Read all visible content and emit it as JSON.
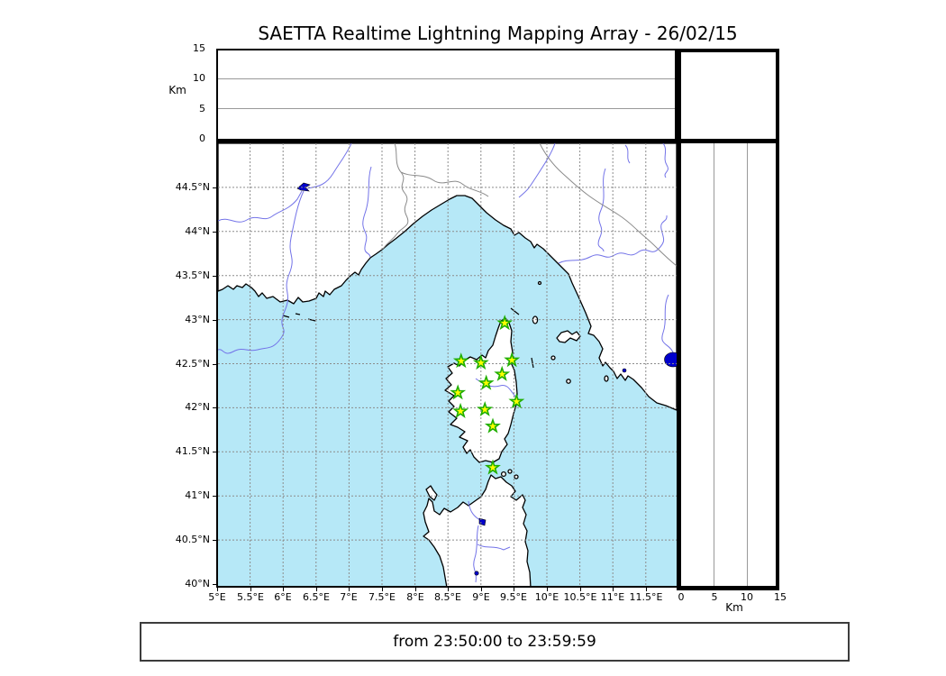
{
  "title": "SAETTA Realtime Lightning Mapping Array - 26/02/15",
  "time_banner": "from 23:50:00 to 23:59:59",
  "altitude_axes": {
    "left": {
      "unit_label": "Km",
      "ticks": [
        0,
        5,
        10,
        15
      ],
      "range_km": [
        0,
        15
      ],
      "gridlines_km": [
        5,
        10
      ]
    },
    "bottom_right": {
      "unit_label": "Km",
      "ticks": [
        0,
        5,
        10,
        15
      ],
      "range_km": [
        0,
        15
      ],
      "gridlines_km": [
        5,
        10
      ]
    }
  },
  "map_axes": {
    "lat_range_deg": [
      40,
      45
    ],
    "lon_range_deg": [
      5,
      12
    ],
    "lat_ticks": [
      {
        "label": "44.5°N",
        "deg": 44.5
      },
      {
        "label": "44°N",
        "deg": 44
      },
      {
        "label": "43.5°N",
        "deg": 43.5
      },
      {
        "label": "43°N",
        "deg": 43
      },
      {
        "label": "42.5°N",
        "deg": 42.5
      },
      {
        "label": "42°N",
        "deg": 42
      },
      {
        "label": "41.5°N",
        "deg": 41.5
      },
      {
        "label": "41°N",
        "deg": 41
      },
      {
        "label": "40.5°N",
        "deg": 40.5
      },
      {
        "label": "40°N",
        "deg": 40
      }
    ],
    "lon_ticks": [
      {
        "label": "5°E",
        "deg": 5
      },
      {
        "label": "5.5°E",
        "deg": 5.5
      },
      {
        "label": "6°E",
        "deg": 6
      },
      {
        "label": "6.5°E",
        "deg": 6.5
      },
      {
        "label": "7°E",
        "deg": 7
      },
      {
        "label": "7.5°E",
        "deg": 7.5
      },
      {
        "label": "8°E",
        "deg": 8
      },
      {
        "label": "8.5°E",
        "deg": 8.5
      },
      {
        "label": "9°E",
        "deg": 9
      },
      {
        "label": "9.5°E",
        "deg": 9.5
      },
      {
        "label": "10°E",
        "deg": 10
      },
      {
        "label": "10.5°E",
        "deg": 10.5
      },
      {
        "label": "11°E",
        "deg": 11
      },
      {
        "label": "11.5°E",
        "deg": 11.5
      }
    ]
  },
  "chart_data": {
    "type": "scatter",
    "title": "SAETTA Realtime Lightning Mapping Array - 26/02/15",
    "time_window": {
      "from": "23:50:00",
      "to": "23:59:59"
    },
    "altitude_panels": {
      "ylabel": "Km",
      "range_km": [
        0,
        15
      ],
      "lightning_points": []
    },
    "map_lightning_points": [],
    "stations": [
      {
        "lon": 9.36,
        "lat": 42.96
      },
      {
        "lon": 8.7,
        "lat": 42.53
      },
      {
        "lon": 9.0,
        "lat": 42.51
      },
      {
        "lon": 9.47,
        "lat": 42.54
      },
      {
        "lon": 9.32,
        "lat": 42.38
      },
      {
        "lon": 9.08,
        "lat": 42.28
      },
      {
        "lon": 8.65,
        "lat": 42.17
      },
      {
        "lon": 9.54,
        "lat": 42.07
      },
      {
        "lon": 8.69,
        "lat": 41.96
      },
      {
        "lon": 9.06,
        "lat": 41.98
      },
      {
        "lon": 9.18,
        "lat": 41.79
      },
      {
        "lon": 9.18,
        "lat": 41.32
      }
    ],
    "legend": "green stars = SAETTA station sites"
  },
  "colors": {
    "sea": "#b6e8f7",
    "land": "#ffffff",
    "coastline": "#000000",
    "river": "#7373e8",
    "region_border": "#8a8a8a",
    "grid": "#8c8c8c",
    "lake": "#0000cc",
    "station_fill": "#ffff00",
    "station_stroke": "#1fae00"
  }
}
